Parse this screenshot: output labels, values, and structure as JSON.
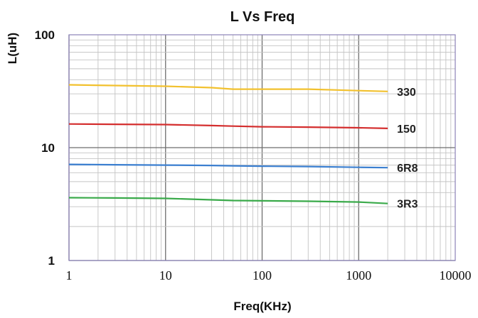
{
  "chart_data": {
    "type": "line",
    "title": "L Vs Freq",
    "xlabel": "Freq(KHz)",
    "ylabel": "L(uH)",
    "x_scale": "log",
    "y_scale": "log",
    "xlim": [
      1,
      10000
    ],
    "ylim": [
      1,
      100
    ],
    "grid": true,
    "x_ticks": [
      "1",
      "10",
      "100",
      "1000",
      "10000"
    ],
    "y_ticks": [
      "1",
      "10",
      "100"
    ],
    "series": [
      {
        "name": "330",
        "color": "#f2c12e",
        "x": [
          1,
          3,
          10,
          30,
          50,
          100,
          300,
          1000,
          2000
        ],
        "y": [
          36,
          35.5,
          35,
          34,
          33,
          33,
          33,
          32,
          31.5
        ]
      },
      {
        "name": "150",
        "color": "#d42e2e",
        "x": [
          1,
          3,
          10,
          30,
          50,
          100,
          300,
          1000,
          2000
        ],
        "y": [
          16.2,
          16.1,
          16,
          15.7,
          15.5,
          15.3,
          15.2,
          15,
          14.8
        ]
      },
      {
        "name": "6R8",
        "color": "#3b7fd0",
        "x": [
          1,
          3,
          10,
          30,
          50,
          100,
          300,
          1000,
          2000
        ],
        "y": [
          7.1,
          7.05,
          7.0,
          6.95,
          6.9,
          6.85,
          6.8,
          6.7,
          6.65
        ]
      },
      {
        "name": "3R3",
        "color": "#3aaa4a",
        "x": [
          1,
          3,
          10,
          30,
          50,
          100,
          300,
          1000,
          2000
        ],
        "y": [
          3.6,
          3.58,
          3.55,
          3.45,
          3.4,
          3.38,
          3.35,
          3.3,
          3.2
        ]
      }
    ]
  }
}
